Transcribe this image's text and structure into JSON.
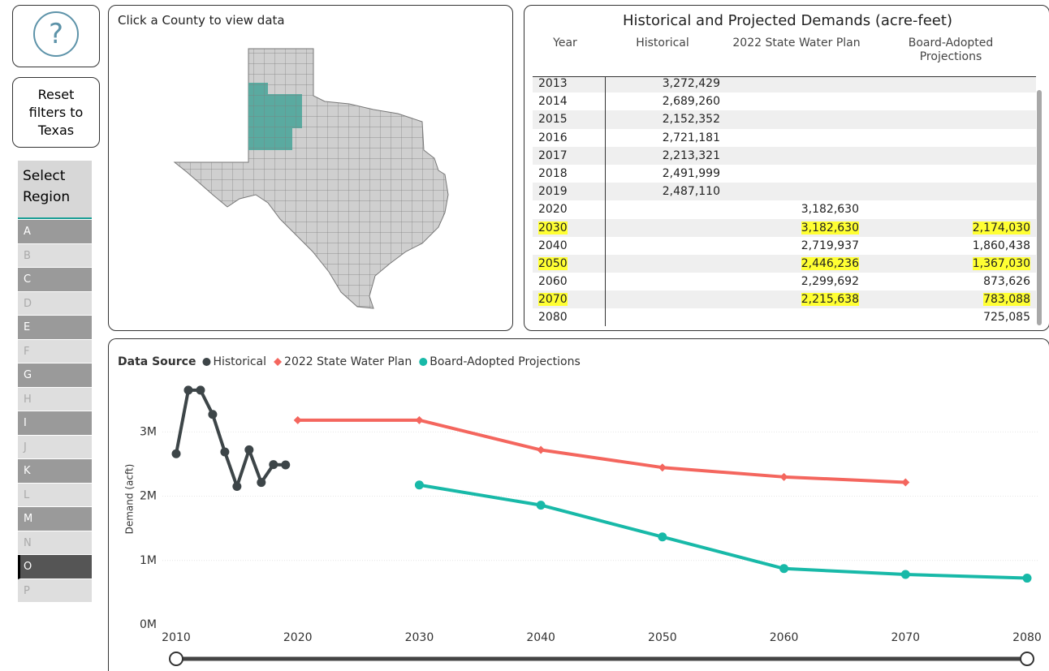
{
  "help_button": {
    "label": "?"
  },
  "reset_button": {
    "label": "Reset filters to Texas"
  },
  "region_selector": {
    "title": "Select Region",
    "options": [
      "A",
      "B",
      "C",
      "D",
      "E",
      "F",
      "G",
      "H",
      "I",
      "J",
      "K",
      "L",
      "M",
      "N",
      "O",
      "P"
    ]
  },
  "map": {
    "instruction": "Click a County to view data"
  },
  "table": {
    "title": "Historical and Projected Demands (acre-feet)",
    "columns": [
      "Year",
      "Historical",
      "2022 State Water Plan",
      "Board-Adopted Projections"
    ],
    "rows": [
      [
        "2013",
        "3,272,429",
        null,
        null
      ],
      [
        "2014",
        "2,689,260",
        null,
        null
      ],
      [
        "2015",
        "2,152,352",
        null,
        null
      ],
      [
        "2016",
        "2,721,181",
        null,
        null
      ],
      [
        "2017",
        "2,213,321",
        null,
        null
      ],
      [
        "2018",
        "2,491,999",
        null,
        null
      ],
      [
        "2019",
        "2,487,110",
        null,
        null
      ],
      [
        "2020",
        null,
        "3,182,630",
        null
      ],
      [
        "2030",
        null,
        "3,182,630",
        "2,174,030"
      ],
      [
        "2040",
        null,
        "2,719,937",
        "1,860,438"
      ],
      [
        "2050",
        null,
        "2,446,236",
        "1,367,030"
      ],
      [
        "2060",
        null,
        "2,299,692",
        "873,626"
      ],
      [
        "2070",
        null,
        "2,215,638",
        "783,088"
      ],
      [
        "2080",
        null,
        null,
        "725,085"
      ]
    ]
  },
  "chart_data": {
    "type": "line",
    "legend_title": "Data Source",
    "y_label": "Demand (acft)",
    "xlim": [
      2010,
      2080
    ],
    "xticks": [
      2010,
      2020,
      2030,
      2040,
      2050,
      2060,
      2070,
      2080
    ],
    "ylim": [
      0,
      3850000
    ],
    "yticks": [
      {
        "value": 0,
        "label": "0M"
      },
      {
        "value": 1000000,
        "label": "1M"
      },
      {
        "value": 2000000,
        "label": "2M"
      },
      {
        "value": 3000000,
        "label": "3M"
      }
    ],
    "grid": true,
    "series": [
      {
        "name": "Historical",
        "color": "#3d4548",
        "marker": "circle",
        "x": [
          2010,
          2011,
          2012,
          2013,
          2014,
          2015,
          2016,
          2017,
          2018,
          2019
        ],
        "values": [
          2660000,
          3650000,
          3650000,
          3272429,
          2689260,
          2152352,
          2721181,
          2213321,
          2491999,
          2487110
        ]
      },
      {
        "name": "2022 State Water Plan",
        "color": "#f4665e",
        "marker": "diamond",
        "x": [
          2020,
          2030,
          2040,
          2050,
          2060,
          2070
        ],
        "values": [
          3182630,
          3182630,
          2719937,
          2446236,
          2299692,
          2215638
        ]
      },
      {
        "name": "Board-Adopted Projections",
        "color": "#18b9a8",
        "marker": "circle",
        "x": [
          2030,
          2040,
          2050,
          2060,
          2070,
          2080
        ],
        "values": [
          2174030,
          1860438,
          1367030,
          873626,
          783088,
          725085
        ]
      }
    ]
  }
}
